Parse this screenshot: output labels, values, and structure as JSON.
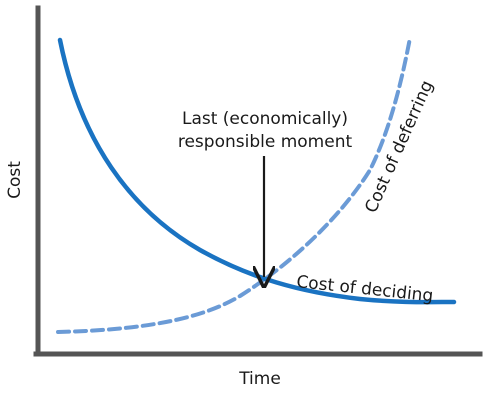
{
  "diagram": {
    "axes": {
      "x_label": "Time",
      "y_label": "Cost"
    },
    "curves": [
      {
        "id": "deciding",
        "label": "Cost of deciding",
        "style": "solid",
        "color": "#1a73c2"
      },
      {
        "id": "deferring",
        "label": "Cost of deferring",
        "style": "dashed",
        "color": "#6b9bd6"
      }
    ],
    "annotation": {
      "line1": "Last (economically)",
      "line2": "responsible moment"
    },
    "colors": {
      "axis": "#555555",
      "text": "#1a1a1a",
      "arrow": "#1a1a1a"
    }
  }
}
